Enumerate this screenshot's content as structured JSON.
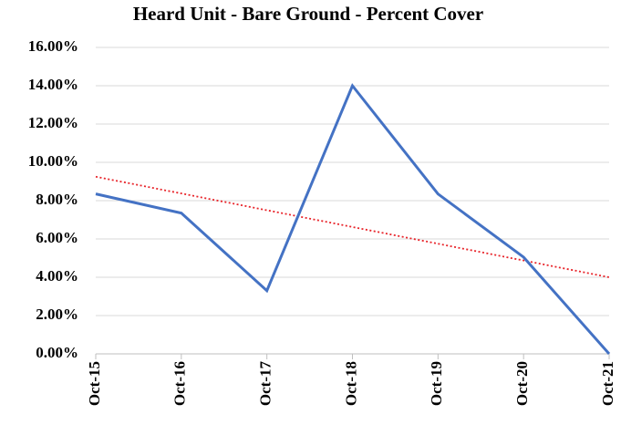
{
  "chart_data": {
    "type": "line",
    "title": "Heard Unit - Bare Ground - Percent Cover",
    "categories": [
      "Oct-15",
      "Oct-16",
      "Oct-17",
      "Oct-18",
      "Oct-19",
      "Oct-20",
      "Oct-21"
    ],
    "series": [
      {
        "color": "#4472c4",
        "values": [
          8.35,
          7.35,
          3.3,
          14.0,
          8.35,
          5.05,
          0.0
        ]
      }
    ],
    "trendline": {
      "color": "#e8242a",
      "values": [
        9.25,
        4.0
      ]
    },
    "ylim": [
      0,
      16
    ],
    "yticks": [
      {
        "value": 0,
        "label": "0.00%"
      },
      {
        "value": 2,
        "label": "2.00%"
      },
      {
        "value": 4,
        "label": "4.00%"
      },
      {
        "value": 6,
        "label": "6.00%"
      },
      {
        "value": 8,
        "label": "8.00%"
      },
      {
        "value": 10,
        "label": "10.00%"
      },
      {
        "value": 12,
        "label": "12.00%"
      },
      {
        "value": 14,
        "label": "14.00%"
      },
      {
        "value": 16,
        "label": "16.00%"
      }
    ],
    "grid": true
  }
}
